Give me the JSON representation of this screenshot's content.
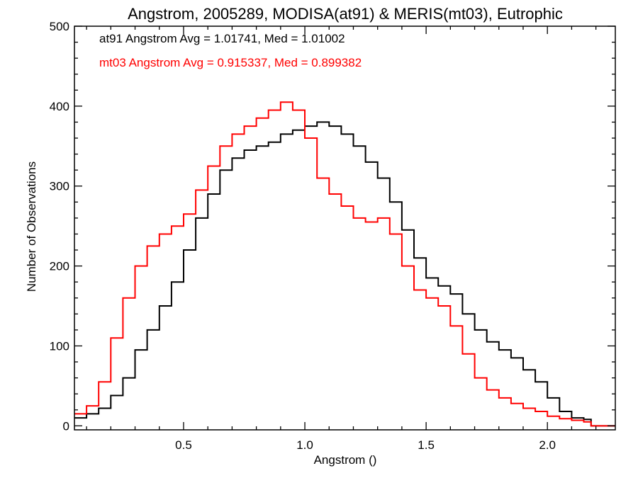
{
  "chart_data": {
    "type": "line",
    "step": true,
    "title": "Angstrom, 2005289, MODISA(at91) & MERIS(mt03), Eutrophic",
    "xlabel": "Angstrom ()",
    "ylabel": "Number of Observations",
    "xlim": [
      0.05,
      2.28
    ],
    "ylim": [
      -5,
      500
    ],
    "xticks": [
      0.5,
      1.0,
      1.5,
      2.0
    ],
    "xtick_labels": [
      "0.5",
      "1.0",
      "1.5",
      "2.0"
    ],
    "yticks": [
      0,
      100,
      200,
      300,
      400,
      500
    ],
    "ytick_labels": [
      "0",
      "100",
      "200",
      "300",
      "400",
      "500"
    ],
    "grid": false,
    "annotations": [
      {
        "text": "at91 Angstrom Avg = 1.01741, Med = 1.01002",
        "color": "#000000"
      },
      {
        "text": "mt03 Angstrom Avg = 0.915337, Med = 0.899382",
        "color": "#ff0000"
      }
    ],
    "series": [
      {
        "name": "at91",
        "color": "#000000",
        "x": [
          0.05,
          0.1,
          0.15,
          0.2,
          0.25,
          0.3,
          0.35,
          0.4,
          0.45,
          0.5,
          0.55,
          0.6,
          0.65,
          0.7,
          0.75,
          0.8,
          0.85,
          0.9,
          0.95,
          1.0,
          1.05,
          1.1,
          1.15,
          1.2,
          1.25,
          1.3,
          1.35,
          1.4,
          1.45,
          1.5,
          1.55,
          1.6,
          1.65,
          1.7,
          1.75,
          1.8,
          1.85,
          1.9,
          1.95,
          2.0,
          2.05,
          2.1,
          2.15,
          2.18,
          2.28
        ],
        "y": [
          10,
          15,
          22,
          38,
          60,
          95,
          120,
          150,
          180,
          220,
          260,
          290,
          320,
          335,
          345,
          350,
          355,
          365,
          370,
          375,
          380,
          375,
          365,
          350,
          330,
          310,
          280,
          245,
          210,
          185,
          175,
          165,
          140,
          120,
          105,
          95,
          85,
          70,
          55,
          35,
          18,
          10,
          8,
          0,
          0
        ]
      },
      {
        "name": "mt03",
        "color": "#ff0000",
        "x": [
          0.05,
          0.1,
          0.15,
          0.2,
          0.25,
          0.3,
          0.35,
          0.4,
          0.45,
          0.5,
          0.55,
          0.6,
          0.65,
          0.7,
          0.75,
          0.8,
          0.85,
          0.9,
          0.95,
          1.0,
          1.05,
          1.1,
          1.15,
          1.2,
          1.25,
          1.3,
          1.35,
          1.4,
          1.45,
          1.5,
          1.55,
          1.6,
          1.65,
          1.7,
          1.75,
          1.8,
          1.85,
          1.9,
          1.95,
          2.0,
          2.05,
          2.1,
          2.15,
          2.18,
          2.28
        ],
        "y": [
          15,
          25,
          55,
          110,
          160,
          200,
          225,
          240,
          250,
          265,
          295,
          325,
          350,
          365,
          375,
          385,
          395,
          405,
          395,
          360,
          310,
          290,
          275,
          260,
          255,
          260,
          240,
          200,
          170,
          160,
          150,
          125,
          90,
          60,
          45,
          35,
          28,
          22,
          18,
          12,
          9,
          7,
          5,
          0,
          0
        ]
      }
    ]
  }
}
